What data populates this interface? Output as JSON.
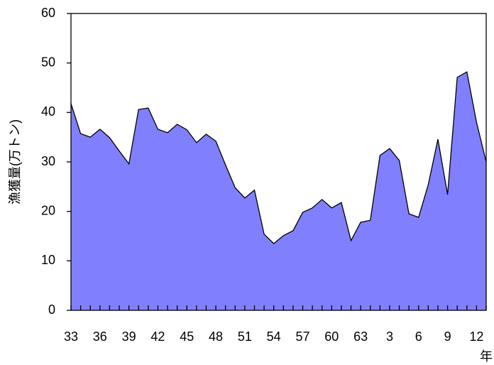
{
  "chart_data": {
    "type": "area",
    "x_label": "年",
    "y_label": "漁獲量(万トン)",
    "categories": [
      "33",
      null,
      null,
      "36",
      null,
      null,
      "39",
      null,
      null,
      "42",
      null,
      null,
      "45",
      null,
      null,
      "48",
      null,
      null,
      "51",
      null,
      null,
      "54",
      null,
      null,
      "57",
      null,
      null,
      "60",
      null,
      null,
      "63",
      null,
      null,
      "3",
      null,
      null,
      "6",
      null,
      null,
      "9",
      null,
      null,
      "12",
      null
    ],
    "values": [
      41.8,
      35.7,
      35.0,
      36.6,
      34.9,
      32.2,
      29.6,
      40.6,
      40.9,
      36.6,
      35.9,
      37.6,
      36.5,
      33.9,
      35.6,
      34.2,
      29.4,
      24.8,
      22.7,
      24.3,
      15.4,
      13.5,
      15.1,
      16.1,
      19.8,
      20.7,
      22.4,
      20.7,
      21.8,
      14.1,
      17.8,
      18.2,
      31.3,
      32.7,
      30.3,
      19.5,
      18.8,
      25.4,
      34.6,
      23.4,
      47.1,
      48.2,
      38.0,
      30.0
    ],
    "color": "#8080ff",
    "ylim": [
      0,
      60
    ],
    "yticks": [
      0,
      10,
      20,
      30,
      40,
      50,
      60
    ]
  }
}
